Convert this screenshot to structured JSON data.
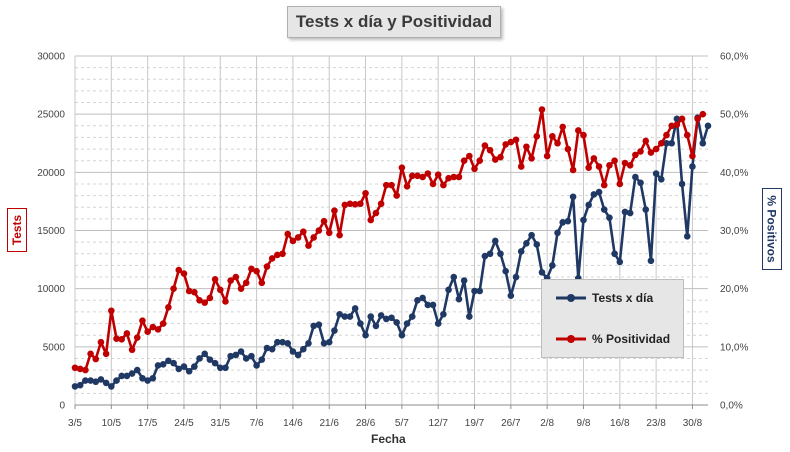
{
  "chart_data": {
    "type": "line",
    "title": "Tests x día y Positividad",
    "xlabel": "Fecha",
    "ylabel_left": "Tests",
    "ylabel_right": "% Positivos",
    "ylim_left": [
      0,
      30000
    ],
    "ylim_right": [
      0,
      60
    ],
    "yticks_left": [
      "0",
      "5000",
      "10000",
      "15000",
      "20000",
      "25000",
      "30000"
    ],
    "yticks_right": [
      "0,0%",
      "10,0%",
      "20,0%",
      "30,0%",
      "40,0%",
      "50,0%",
      "60,0%"
    ],
    "x_tick_labels": [
      "3/5",
      "10/5",
      "17/5",
      "24/5",
      "31/5",
      "7/6",
      "14/6",
      "21/6",
      "28/6",
      "5/7",
      "12/7",
      "19/7",
      "26/7",
      "2/8",
      "9/8",
      "16/8",
      "23/8",
      "30/8"
    ],
    "start_date": "2020-05-03",
    "grid": "on",
    "legend_placement": "inside-bottom-right",
    "colors": {
      "tests": "#1f3864",
      "positividad": "#c00000"
    },
    "series": [
      {
        "name": "Tests x día",
        "axis": "left",
        "values": [
          1600,
          1700,
          2100,
          2100,
          2000,
          2200,
          1900,
          1600,
          2100,
          2500,
          2500,
          2700,
          3000,
          2300,
          2100,
          2300,
          3400,
          3500,
          3800,
          3600,
          3100,
          3300,
          2900,
          3300,
          4000,
          4400,
          3900,
          3600,
          3200,
          3200,
          4200,
          4300,
          4600,
          4000,
          4200,
          3400,
          3900,
          4900,
          4800,
          5400,
          5400,
          5300,
          4600,
          4300,
          4800,
          5300,
          6800,
          6900,
          5300,
          5400,
          6400,
          7800,
          7600,
          7600,
          8300,
          7000,
          6000,
          7600,
          6800,
          7700,
          7400,
          7500,
          7100,
          6000,
          7000,
          7600,
          9000,
          9200,
          8600,
          8600,
          7000,
          7800,
          9900,
          11000,
          9100,
          10700,
          7600,
          9800,
          9800,
          12800,
          13000,
          14100,
          13000,
          11500,
          9400,
          11000,
          13200,
          13900,
          14600,
          13800,
          11400,
          10900,
          12000,
          14800,
          15700,
          15800,
          17900,
          10900,
          15900,
          17200,
          18100,
          18300,
          16800,
          16100,
          13000,
          12300,
          16600,
          16500,
          19600,
          19100,
          16800,
          12400,
          19900,
          19400,
          22500,
          22500,
          24600,
          19000,
          14500,
          20500,
          24700,
          22500,
          24000
        ]
      },
      {
        "name": "% Positividad",
        "axis": "right",
        "values": [
          6.4,
          6.2,
          6.0,
          8.8,
          7.9,
          10.8,
          8.8,
          16.2,
          11.4,
          11.3,
          12.3,
          9.5,
          11.6,
          14.5,
          12.6,
          13.4,
          13.0,
          14.0,
          16.8,
          20.0,
          23.2,
          22.6,
          19.6,
          19.4,
          18.0,
          17.6,
          18.4,
          21.6,
          19.8,
          17.8,
          21.4,
          22.0,
          20.0,
          21.0,
          23.4,
          23.0,
          21.0,
          23.8,
          25.2,
          25.8,
          26.0,
          29.4,
          28.2,
          28.8,
          29.8,
          27.4,
          28.8,
          30.0,
          31.6,
          29.6,
          33.4,
          29.2,
          34.4,
          34.6,
          34.5,
          34.6,
          36.4,
          31.8,
          33.0,
          34.6,
          37.8,
          37.8,
          36.0,
          40.8,
          37.6,
          39.4,
          39.4,
          39.2,
          39.8,
          38.0,
          39.6,
          37.8,
          39.0,
          39.2,
          39.2,
          42.0,
          42.8,
          40.6,
          42.0,
          44.6,
          43.8,
          42.2,
          42.6,
          44.8,
          45.2,
          45.6,
          41.0,
          44.4,
          42.4,
          46.2,
          50.8,
          42.8,
          46.2,
          45.0,
          47.8,
          44.0,
          40.4,
          47.2,
          46.4,
          40.8,
          42.4,
          41.0,
          37.8,
          41.2,
          42.0,
          38.0,
          41.6,
          41.2,
          43.0,
          43.6,
          45.4,
          43.4,
          44.0,
          45.0,
          46.4,
          48.0,
          48.2,
          49.2,
          46.4,
          42.8,
          49.2,
          50.0
        ]
      }
    ]
  }
}
